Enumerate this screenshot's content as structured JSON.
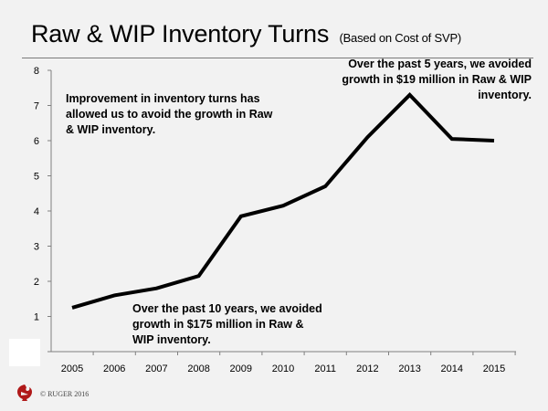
{
  "slide": {
    "title": "Raw & WIP Inventory Turns",
    "subtitle": "(Based on Cost of SVP)",
    "copyright": "© RUGER 2016"
  },
  "annotations": {
    "left": "Improvement in inventory turns has allowed us to avoid the growth in Raw & WIP inventory.",
    "right": "Over the past 5 years, we avoided growth in $19 million in Raw & WIP inventory.",
    "bottom": "Over the past 10 years, we avoided growth in $175 million in Raw & WIP inventory."
  },
  "chart_data": {
    "type": "line",
    "categories": [
      "2005",
      "2006",
      "2007",
      "2008",
      "2009",
      "2010",
      "2011",
      "2012",
      "2013",
      "2014",
      "2015"
    ],
    "series": [
      {
        "values": [
          1.25,
          1.6,
          1.8,
          2.15,
          3.85,
          4.15,
          4.7,
          6.1,
          7.3,
          6.05,
          6.0
        ]
      }
    ],
    "y_ticks": [
      "1",
      "2",
      "3",
      "4",
      "5",
      "6",
      "7",
      "8"
    ],
    "ylim": [
      0,
      8
    ],
    "grid": false,
    "legend": "none",
    "line_color": "#000000"
  }
}
